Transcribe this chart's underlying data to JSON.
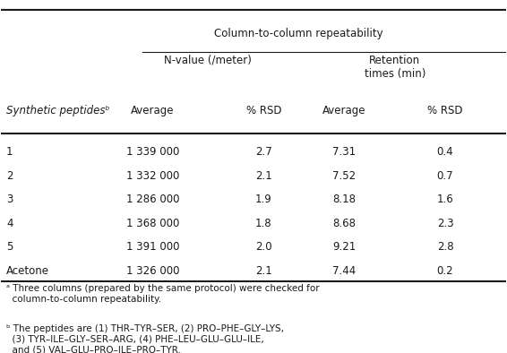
{
  "title_main": "Column-to-column repeatability",
  "col_header1": "N-value (/meter)",
  "col_header2": "Retention\ntimes (min)",
  "sub_headers": [
    "Average",
    "% RSD",
    "Average",
    "% RSD"
  ],
  "row_header": "Synthetic peptidesᵇ",
  "rows": [
    [
      "1",
      "1 339 000",
      "2.7",
      "7.31",
      "0.4"
    ],
    [
      "2",
      "1 332 000",
      "2.1",
      "7.52",
      "0.7"
    ],
    [
      "3",
      "1 286 000",
      "1.9",
      "8.18",
      "1.6"
    ],
    [
      "4",
      "1 368 000",
      "1.8",
      "8.68",
      "2.3"
    ],
    [
      "5",
      "1 391 000",
      "2.0",
      "9.21",
      "2.8"
    ],
    [
      "Acetone",
      "1 326 000",
      "2.1",
      "7.44",
      "0.2"
    ]
  ],
  "footnote_a": "ᵃ Three columns (prepared by the same protocol) were checked for\n  column-to-column repeatability.",
  "footnote_b": "ᵇ The peptides are (1) THR–TYR–SER, (2) PRO–PHE–GLY–LYS,\n  (3) TYR–ILE–GLY–SER–ARG, (4) PHE–LEU–GLU–GLU–ILE,\n  and (5) VAL–GLU–PRO–ILE–PRO–TYR.",
  "bg_color": "#ffffff",
  "text_color": "#1a1a1a",
  "fontsize": 8.5
}
